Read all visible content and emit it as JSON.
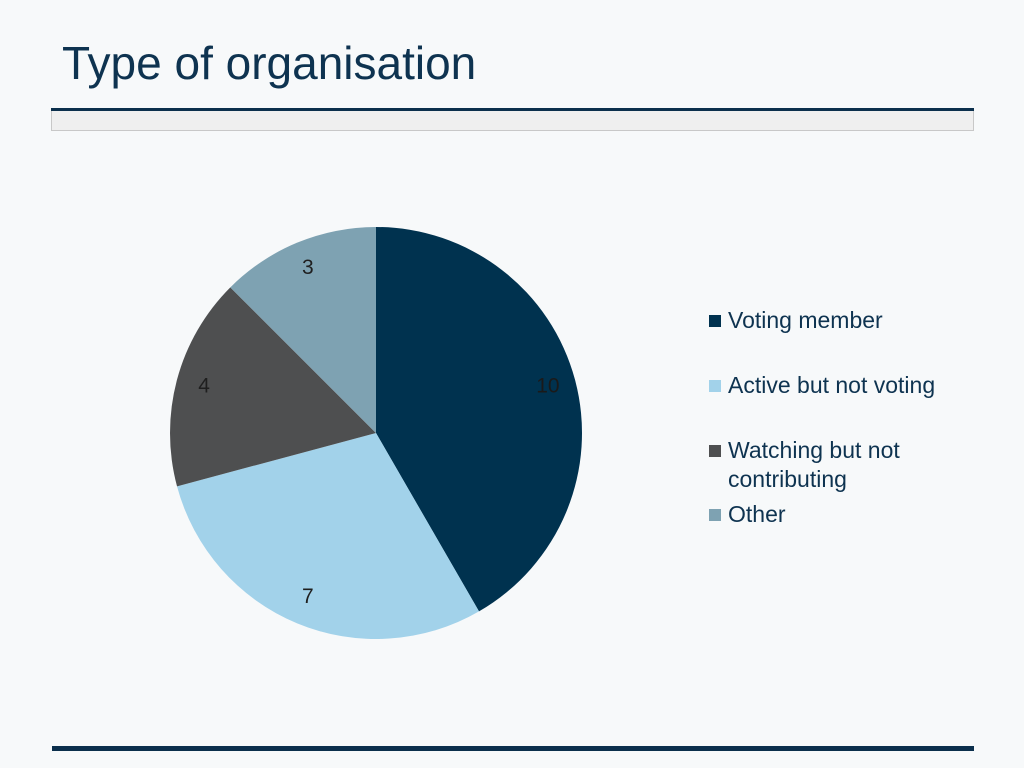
{
  "title": "Type of organisation",
  "chart_data": {
    "type": "pie",
    "categories": [
      "Voting member",
      "Active but not voting",
      "Watching but not contributing",
      "Other"
    ],
    "values": [
      10,
      7,
      4,
      3
    ],
    "data_labels": [
      "10",
      "7",
      "4",
      "3"
    ],
    "colors": [
      "#00324f",
      "#a2d2ea",
      "#4e4f50",
      "#7ea2b2"
    ],
    "start_angle_deg": 0,
    "direction": "clockwise",
    "legend_position": "right"
  }
}
